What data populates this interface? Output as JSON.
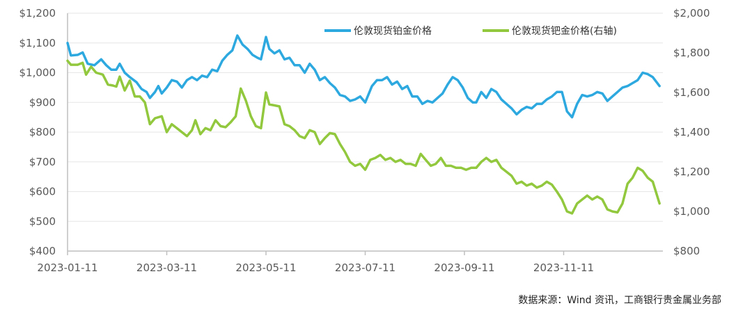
{
  "chart_data": {
    "type": "line",
    "title": "",
    "colors": {
      "platinum": "#2ea9e0",
      "palladium": "#92c83e",
      "axis": "#bfbfbf",
      "text": "#595959"
    },
    "x_ticks": [
      "2023-01-11",
      "2023-03-11",
      "2023-05-11",
      "2023-07-11",
      "2023-09-11",
      "2023-11-11"
    ],
    "x_range": [
      "2023-01-11",
      "2023-12-29"
    ],
    "y_left": {
      "min": 400,
      "max": 1200,
      "step": 100,
      "tick_labels": [
        "$400",
        "$500",
        "$600",
        "$700",
        "$800",
        "$900",
        "$1,000",
        "$1,100",
        "$1,200"
      ]
    },
    "y_right": {
      "min": 800,
      "max": 2000,
      "step": 200,
      "tick_labels": [
        "$800",
        "$1,000",
        "$1,200",
        "$1,400",
        "$1,600",
        "$1,800",
        "$2,000"
      ]
    },
    "legend_position": "top-right",
    "series": [
      {
        "name": "伦敦现货铂金价格",
        "axis": "left",
        "points": [
          [
            "2023-01-11",
            1100
          ],
          [
            "2023-01-13",
            1058
          ],
          [
            "2023-01-17",
            1060
          ],
          [
            "2023-01-20",
            1068
          ],
          [
            "2023-01-23",
            1030
          ],
          [
            "2023-01-27",
            1025
          ],
          [
            "2023-01-31",
            1045
          ],
          [
            "2023-02-03",
            1025
          ],
          [
            "2023-02-06",
            1010
          ],
          [
            "2023-02-09",
            1010
          ],
          [
            "2023-02-11",
            1030
          ],
          [
            "2023-02-14",
            1000
          ],
          [
            "2023-02-17",
            985
          ],
          [
            "2023-02-21",
            968
          ],
          [
            "2023-02-24",
            945
          ],
          [
            "2023-02-27",
            935
          ],
          [
            "2023-03-01",
            915
          ],
          [
            "2023-03-04",
            935
          ],
          [
            "2023-03-06",
            955
          ],
          [
            "2023-03-08",
            930
          ],
          [
            "2023-03-11",
            950
          ],
          [
            "2023-03-14",
            975
          ],
          [
            "2023-03-17",
            970
          ],
          [
            "2023-03-20",
            950
          ],
          [
            "2023-03-23",
            975
          ],
          [
            "2023-03-26",
            985
          ],
          [
            "2023-03-29",
            975
          ],
          [
            "2023-04-01",
            990
          ],
          [
            "2023-04-04",
            985
          ],
          [
            "2023-04-07",
            1010
          ],
          [
            "2023-04-10",
            1005
          ],
          [
            "2023-04-13",
            1040
          ],
          [
            "2023-04-16",
            1060
          ],
          [
            "2023-04-19",
            1075
          ],
          [
            "2023-04-22",
            1125
          ],
          [
            "2023-04-25",
            1095
          ],
          [
            "2023-04-28",
            1080
          ],
          [
            "2023-05-01",
            1060
          ],
          [
            "2023-05-04",
            1050
          ],
          [
            "2023-05-06",
            1045
          ],
          [
            "2023-05-09",
            1120
          ],
          [
            "2023-05-11",
            1080
          ],
          [
            "2023-05-14",
            1065
          ],
          [
            "2023-05-17",
            1075
          ],
          [
            "2023-05-20",
            1045
          ],
          [
            "2023-05-23",
            1050
          ],
          [
            "2023-05-26",
            1025
          ],
          [
            "2023-05-29",
            1025
          ],
          [
            "2023-06-01",
            1000
          ],
          [
            "2023-06-04",
            1030
          ],
          [
            "2023-06-07",
            1010
          ],
          [
            "2023-06-10",
            975
          ],
          [
            "2023-06-13",
            985
          ],
          [
            "2023-06-16",
            965
          ],
          [
            "2023-06-19",
            950
          ],
          [
            "2023-06-22",
            925
          ],
          [
            "2023-06-25",
            920
          ],
          [
            "2023-06-28",
            905
          ],
          [
            "2023-07-01",
            910
          ],
          [
            "2023-07-04",
            920
          ],
          [
            "2023-07-07",
            900
          ],
          [
            "2023-07-11",
            955
          ],
          [
            "2023-07-14",
            975
          ],
          [
            "2023-07-17",
            975
          ],
          [
            "2023-07-20",
            985
          ],
          [
            "2023-07-23",
            960
          ],
          [
            "2023-07-26",
            970
          ],
          [
            "2023-07-29",
            945
          ],
          [
            "2023-08-01",
            955
          ],
          [
            "2023-08-04",
            920
          ],
          [
            "2023-08-07",
            920
          ],
          [
            "2023-08-10",
            895
          ],
          [
            "2023-08-13",
            905
          ],
          [
            "2023-08-16",
            900
          ],
          [
            "2023-08-19",
            915
          ],
          [
            "2023-08-22",
            930
          ],
          [
            "2023-08-25",
            960
          ],
          [
            "2023-08-28",
            985
          ],
          [
            "2023-08-31",
            975
          ],
          [
            "2023-09-03",
            950
          ],
          [
            "2023-09-06",
            915
          ],
          [
            "2023-09-09",
            900
          ],
          [
            "2023-09-11",
            900
          ],
          [
            "2023-09-14",
            935
          ],
          [
            "2023-09-17",
            915
          ],
          [
            "2023-09-20",
            945
          ],
          [
            "2023-09-23",
            935
          ],
          [
            "2023-09-26",
            910
          ],
          [
            "2023-09-29",
            895
          ],
          [
            "2023-10-02",
            880
          ],
          [
            "2023-10-05",
            860
          ],
          [
            "2023-10-08",
            875
          ],
          [
            "2023-10-11",
            885
          ],
          [
            "2023-10-14",
            880
          ],
          [
            "2023-10-17",
            895
          ],
          [
            "2023-10-20",
            895
          ],
          [
            "2023-10-23",
            910
          ],
          [
            "2023-10-26",
            920
          ],
          [
            "2023-10-29",
            935
          ],
          [
            "2023-11-01",
            935
          ],
          [
            "2023-11-04",
            870
          ],
          [
            "2023-11-07",
            850
          ],
          [
            "2023-11-10",
            895
          ],
          [
            "2023-11-13",
            925
          ],
          [
            "2023-11-16",
            920
          ],
          [
            "2023-11-19",
            925
          ],
          [
            "2023-11-22",
            935
          ],
          [
            "2023-11-25",
            930
          ],
          [
            "2023-11-28",
            905
          ],
          [
            "2023-12-01",
            920
          ],
          [
            "2023-12-04",
            935
          ],
          [
            "2023-12-07",
            950
          ],
          [
            "2023-12-10",
            955
          ],
          [
            "2023-12-13",
            965
          ],
          [
            "2023-12-16",
            975
          ],
          [
            "2023-12-19",
            1000
          ],
          [
            "2023-12-22",
            995
          ],
          [
            "2023-12-25",
            985
          ],
          [
            "2023-12-29",
            955
          ]
        ]
      },
      {
        "name": "伦敦现货钯金价格(右轴)",
        "axis": "right",
        "points": [
          [
            "2023-01-11",
            1760
          ],
          [
            "2023-01-13",
            1740
          ],
          [
            "2023-01-17",
            1740
          ],
          [
            "2023-01-20",
            1750
          ],
          [
            "2023-01-22",
            1690
          ],
          [
            "2023-01-25",
            1730
          ],
          [
            "2023-01-28",
            1700
          ],
          [
            "2023-02-01",
            1690
          ],
          [
            "2023-02-04",
            1640
          ],
          [
            "2023-02-07",
            1635
          ],
          [
            "2023-02-09",
            1630
          ],
          [
            "2023-02-11",
            1680
          ],
          [
            "2023-02-14",
            1610
          ],
          [
            "2023-02-17",
            1660
          ],
          [
            "2023-02-20",
            1580
          ],
          [
            "2023-02-23",
            1580
          ],
          [
            "2023-02-26",
            1550
          ],
          [
            "2023-03-01",
            1440
          ],
          [
            "2023-03-04",
            1470
          ],
          [
            "2023-03-08",
            1480
          ],
          [
            "2023-03-11",
            1400
          ],
          [
            "2023-03-14",
            1440
          ],
          [
            "2023-03-17",
            1420
          ],
          [
            "2023-03-20",
            1400
          ],
          [
            "2023-03-23",
            1380
          ],
          [
            "2023-03-26",
            1410
          ],
          [
            "2023-03-28",
            1460
          ],
          [
            "2023-03-31",
            1390
          ],
          [
            "2023-04-03",
            1420
          ],
          [
            "2023-04-06",
            1410
          ],
          [
            "2023-04-09",
            1460
          ],
          [
            "2023-04-12",
            1430
          ],
          [
            "2023-04-15",
            1425
          ],
          [
            "2023-04-18",
            1450
          ],
          [
            "2023-04-21",
            1480
          ],
          [
            "2023-04-24",
            1620
          ],
          [
            "2023-04-27",
            1560
          ],
          [
            "2023-04-30",
            1480
          ],
          [
            "2023-05-03",
            1430
          ],
          [
            "2023-05-06",
            1420
          ],
          [
            "2023-05-09",
            1600
          ],
          [
            "2023-05-11",
            1540
          ],
          [
            "2023-05-14",
            1535
          ],
          [
            "2023-05-17",
            1530
          ],
          [
            "2023-05-20",
            1440
          ],
          [
            "2023-05-23",
            1430
          ],
          [
            "2023-05-26",
            1410
          ],
          [
            "2023-05-29",
            1380
          ],
          [
            "2023-06-01",
            1370
          ],
          [
            "2023-06-04",
            1410
          ],
          [
            "2023-06-07",
            1400
          ],
          [
            "2023-06-10",
            1340
          ],
          [
            "2023-06-13",
            1370
          ],
          [
            "2023-06-16",
            1395
          ],
          [
            "2023-06-19",
            1390
          ],
          [
            "2023-06-22",
            1340
          ],
          [
            "2023-06-25",
            1300
          ],
          [
            "2023-06-28",
            1250
          ],
          [
            "2023-07-01",
            1230
          ],
          [
            "2023-07-04",
            1240
          ],
          [
            "2023-07-07",
            1210
          ],
          [
            "2023-07-10",
            1260
          ],
          [
            "2023-07-13",
            1270
          ],
          [
            "2023-07-16",
            1285
          ],
          [
            "2023-07-19",
            1260
          ],
          [
            "2023-07-22",
            1270
          ],
          [
            "2023-07-25",
            1250
          ],
          [
            "2023-07-28",
            1260
          ],
          [
            "2023-07-31",
            1240
          ],
          [
            "2023-08-03",
            1240
          ],
          [
            "2023-08-06",
            1230
          ],
          [
            "2023-08-09",
            1290
          ],
          [
            "2023-08-12",
            1260
          ],
          [
            "2023-08-15",
            1230
          ],
          [
            "2023-08-18",
            1240
          ],
          [
            "2023-08-21",
            1270
          ],
          [
            "2023-08-24",
            1230
          ],
          [
            "2023-08-27",
            1230
          ],
          [
            "2023-08-30",
            1220
          ],
          [
            "2023-09-02",
            1220
          ],
          [
            "2023-09-05",
            1210
          ],
          [
            "2023-09-08",
            1220
          ],
          [
            "2023-09-11",
            1220
          ],
          [
            "2023-09-14",
            1250
          ],
          [
            "2023-09-17",
            1270
          ],
          [
            "2023-09-20",
            1250
          ],
          [
            "2023-09-23",
            1260
          ],
          [
            "2023-09-26",
            1220
          ],
          [
            "2023-09-29",
            1200
          ],
          [
            "2023-10-02",
            1180
          ],
          [
            "2023-10-05",
            1140
          ],
          [
            "2023-10-08",
            1150
          ],
          [
            "2023-10-11",
            1130
          ],
          [
            "2023-10-14",
            1140
          ],
          [
            "2023-10-17",
            1120
          ],
          [
            "2023-10-20",
            1130
          ],
          [
            "2023-10-23",
            1150
          ],
          [
            "2023-10-26",
            1135
          ],
          [
            "2023-10-29",
            1100
          ],
          [
            "2023-11-01",
            1060
          ],
          [
            "2023-11-04",
            1000
          ],
          [
            "2023-11-07",
            990
          ],
          [
            "2023-11-10",
            1040
          ],
          [
            "2023-11-13",
            1060
          ],
          [
            "2023-11-16",
            1080
          ],
          [
            "2023-11-19",
            1060
          ],
          [
            "2023-11-22",
            1075
          ],
          [
            "2023-11-25",
            1060
          ],
          [
            "2023-11-28",
            1010
          ],
          [
            "2023-12-01",
            1000
          ],
          [
            "2023-12-04",
            995
          ],
          [
            "2023-12-07",
            1040
          ],
          [
            "2023-12-10",
            1140
          ],
          [
            "2023-12-13",
            1170
          ],
          [
            "2023-12-16",
            1220
          ],
          [
            "2023-12-19",
            1205
          ],
          [
            "2023-12-22",
            1170
          ],
          [
            "2023-12-25",
            1150
          ],
          [
            "2023-12-29",
            1040
          ]
        ]
      }
    ]
  },
  "source_note": "数据来源：Wind 资讯，工商银行贵金属业务部"
}
